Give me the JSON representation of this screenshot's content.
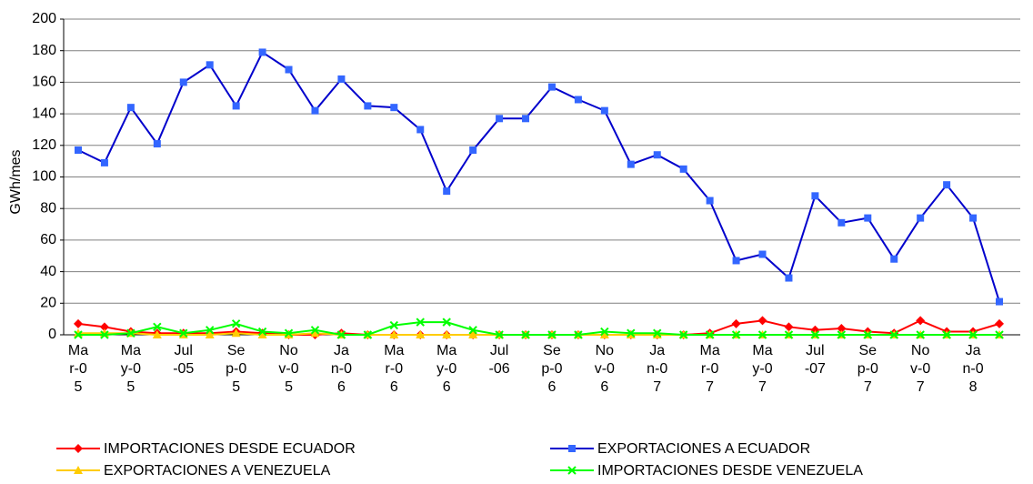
{
  "chart_data": {
    "type": "line",
    "y_label": "GWh/mes",
    "categories": [
      "Mar-05",
      null,
      "May-05",
      null,
      "Jul-05",
      null,
      "Sep-05",
      null,
      "Nov-05",
      null,
      "Jan-06",
      null,
      "Mar-06",
      null,
      "May-06",
      null,
      "Jul-06",
      null,
      "Sep-06",
      null,
      "Nov-06",
      null,
      "Jan-07",
      null,
      "Mar-07",
      null,
      "May-07",
      null,
      "Jul-07",
      null,
      "Sep-07",
      null,
      "Nov-07",
      null,
      "Jan-08",
      null
    ],
    "series": [
      {
        "name": "IMPORTACIONES DESDE ECUADOR",
        "color": "#ff0000",
        "marker": "diamond",
        "values": [
          7,
          5,
          2,
          1,
          1,
          1,
          2,
          1,
          0,
          0,
          1,
          0,
          0,
          0,
          0,
          0,
          0,
          0,
          0,
          0,
          0,
          0,
          0,
          0,
          1,
          7,
          9,
          5,
          3,
          4,
          2,
          1,
          9,
          2,
          2,
          7
        ]
      },
      {
        "name": "EXPORTACIONES A ECUADOR",
        "color": "#0000cc",
        "marker_color": "#3366ff",
        "marker": "square",
        "values": [
          117,
          109,
          144,
          121,
          160,
          171,
          145,
          179,
          168,
          142,
          162,
          145,
          144,
          130,
          91,
          117,
          137,
          137,
          157,
          149,
          142,
          108,
          114,
          105,
          85,
          47,
          51,
          36,
          88,
          71,
          74,
          48,
          74,
          95,
          74,
          21
        ]
      },
      {
        "name": "EXPORTACIONES A VENEZUELA",
        "color": "#ffcc00",
        "marker": "triangle",
        "values": [
          1,
          1,
          1,
          0,
          0,
          0,
          1,
          0,
          0,
          1,
          0,
          0,
          0,
          0,
          0,
          0,
          0,
          0,
          0,
          0,
          0,
          0,
          0,
          0,
          0,
          0,
          0,
          0,
          0,
          0,
          0,
          0,
          0,
          0,
          0,
          0
        ]
      },
      {
        "name": "IMPORTACIONES DESDE VENEZUELA",
        "color": "#00ff00",
        "marker": "x",
        "values": [
          0,
          0,
          1,
          5,
          1,
          3,
          7,
          2,
          1,
          3,
          0,
          0,
          6,
          8,
          8,
          3,
          0,
          0,
          0,
          0,
          2,
          1,
          1,
          0,
          0,
          0,
          0,
          0,
          0,
          0,
          0,
          0,
          0,
          0,
          0,
          0
        ]
      }
    ],
    "ylim": [
      0,
      200
    ],
    "yticks": [
      0,
      20,
      40,
      60,
      80,
      100,
      120,
      140,
      160,
      180,
      200
    ],
    "grid": true
  }
}
